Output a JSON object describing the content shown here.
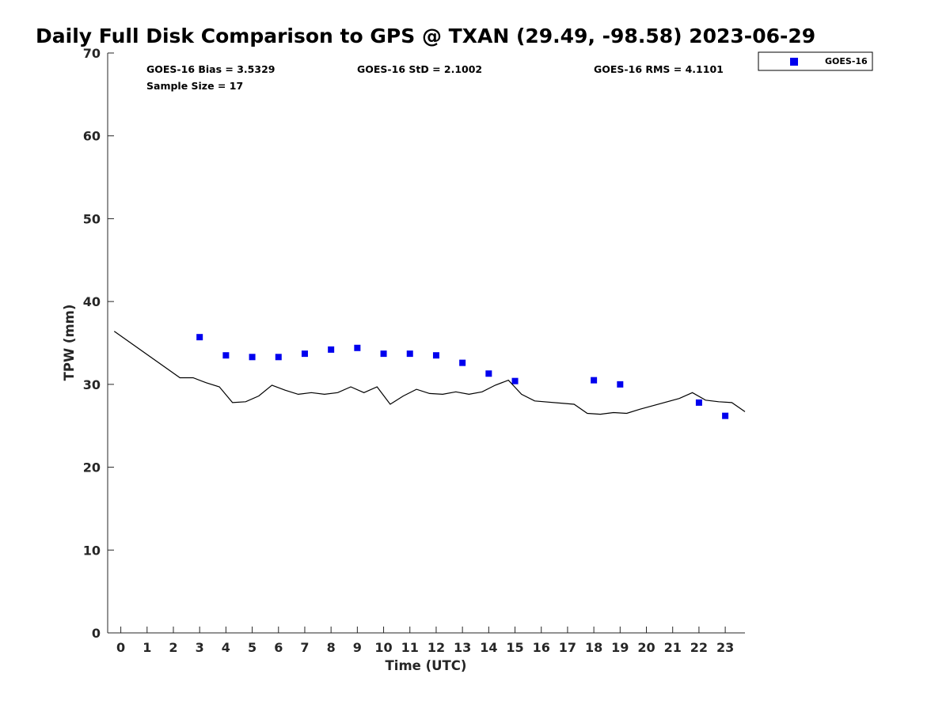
{
  "chart_data": {
    "type": "scatter",
    "title": "Daily Full Disk Comparison to GPS @ TXAN (29.49, -98.58) 2023-06-29",
    "xlabel": "Time (UTC)",
    "ylabel": "TPW (mm)",
    "xlim": [
      -0.5,
      23.75
    ],
    "ylim": [
      0,
      70
    ],
    "x_ticks": [
      0,
      1,
      2,
      3,
      4,
      5,
      6,
      7,
      8,
      9,
      10,
      11,
      12,
      13,
      14,
      15,
      16,
      17,
      18,
      19,
      20,
      21,
      22,
      23
    ],
    "y_ticks": [
      0,
      10,
      20,
      30,
      40,
      50,
      60,
      70
    ],
    "grid": false,
    "legend_position": "top-right, outside plot",
    "stats": {
      "bias": "GOES-16 Bias = 3.5329",
      "std": "GOES-16 StD = 2.1002",
      "rms": "GOES-16 RMS = 4.1101",
      "sample_size": "Sample Size = 17"
    },
    "series": [
      {
        "name": "GOES-16",
        "type": "scatter",
        "color": "#0000ee",
        "marker": "square",
        "x": [
          3,
          4,
          5,
          6,
          7,
          8,
          9,
          10,
          11,
          12,
          13,
          14,
          15,
          18,
          19,
          22,
          23
        ],
        "y": [
          35.7,
          33.5,
          33.3,
          33.3,
          33.7,
          34.2,
          34.4,
          33.7,
          33.7,
          33.5,
          32.6,
          31.3,
          30.4,
          30.5,
          30.0,
          27.8,
          26.2
        ]
      },
      {
        "type": "line",
        "color": "#000000",
        "x": [
          -0.25,
          2.25,
          2.75,
          3.25,
          3.75,
          4.25,
          4.75,
          5.25,
          5.75,
          6.25,
          6.75,
          7.25,
          7.75,
          8.25,
          8.75,
          9.25,
          9.75,
          10.25,
          10.75,
          11.25,
          11.75,
          12.25,
          12.75,
          13.25,
          13.75,
          14.25,
          14.75,
          15.25,
          15.75,
          17.25,
          17.75,
          18.25,
          18.75,
          19.25,
          19.75,
          21.25,
          21.75,
          22.25,
          22.75,
          23.25,
          23.75
        ],
        "y": [
          36.4,
          30.8,
          30.8,
          30.2,
          29.7,
          27.8,
          27.9,
          28.6,
          29.9,
          29.3,
          28.8,
          29.0,
          28.8,
          29.0,
          29.7,
          29.0,
          29.7,
          27.6,
          28.6,
          29.4,
          28.9,
          28.8,
          29.1,
          28.8,
          29.1,
          29.9,
          30.5,
          28.8,
          28.0,
          27.6,
          26.5,
          26.4,
          26.6,
          26.5,
          27.0,
          28.3,
          29.0,
          28.1,
          27.9,
          27.8,
          26.7
        ]
      }
    ]
  }
}
